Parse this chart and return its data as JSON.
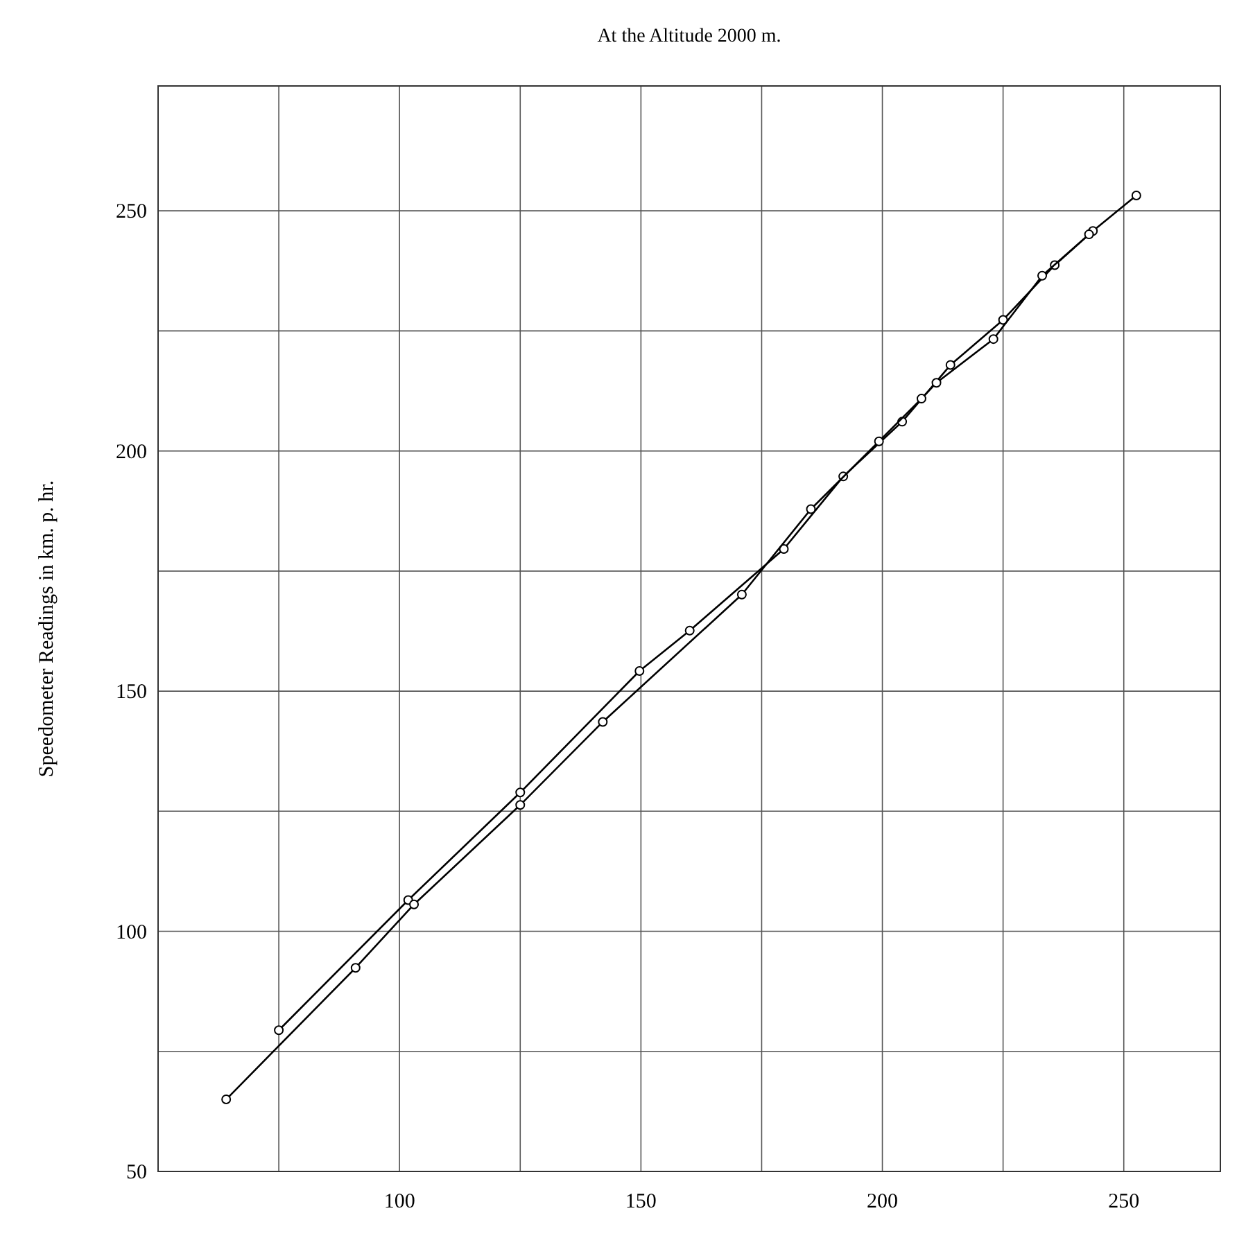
{
  "chart_data": {
    "type": "line",
    "title": "At the Altitude 2000 m.",
    "ylabel": "Speedometer Readings in km. p. hr.",
    "xlim": [
      50,
      270
    ],
    "ylim": [
      50,
      276
    ],
    "xticks": [
      {
        "value": 50,
        "label": null
      },
      {
        "value": 75,
        "label": null
      },
      100,
      {
        "value": 125,
        "label": null
      },
      150,
      {
        "value": 175,
        "label": null
      },
      200,
      {
        "value": 225,
        "label": null
      },
      250
    ],
    "yticks": [
      50,
      {
        "value": 75,
        "label": null
      },
      100,
      {
        "value": 125,
        "label": null
      },
      150,
      {
        "value": 175,
        "label": null
      },
      200,
      {
        "value": 225,
        "label": null
      },
      250
    ],
    "grid": true,
    "marker": "circle",
    "line_style": "solid",
    "series": [
      {
        "color": "#000000",
        "x": [
          75,
          101.8,
          125,
          149.7,
          160.1,
          179.6,
          191.9,
          204.1,
          214.1,
          225,
          235.7,
          243.6,
          252.6
        ],
        "values": [
          79.4,
          106.5,
          128.9,
          154.2,
          162.6,
          179.6,
          194.7,
          206.1,
          217.9,
          227.3,
          238.7,
          245.8,
          253.2
        ]
      },
      {
        "color": "#000000",
        "x": [
          64.1,
          90.9,
          103,
          125,
          142.1,
          170.9,
          185.2,
          199.3,
          208.1,
          211.2,
          223,
          233.1,
          242.8
        ],
        "values": [
          65,
          92.4,
          105.6,
          126.3,
          143.6,
          170.1,
          187.9,
          202,
          210.9,
          214.2,
          223.3,
          236.5,
          245.1
        ]
      }
    ]
  }
}
